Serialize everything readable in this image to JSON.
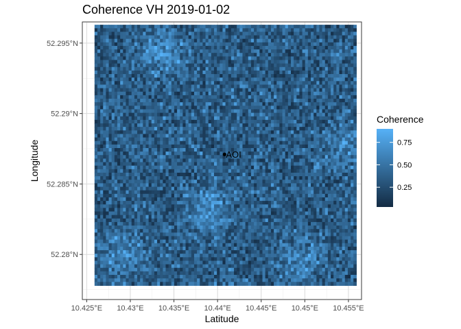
{
  "chart_data": {
    "type": "heatmap",
    "title": "Coherence VH 2019-01-02",
    "xlabel": "Latitude",
    "ylabel": "Longitude",
    "xlim": [
      10.4245,
      10.4565
    ],
    "ylim": [
      52.2768,
      52.2965
    ],
    "x_extent": [
      10.4259,
      10.4559
    ],
    "y_extent": [
      52.2778,
      52.2963
    ],
    "x_ticks": [
      10.425,
      10.43,
      10.435,
      10.44,
      10.445,
      10.45,
      10.455
    ],
    "x_tick_labels": [
      "10.425°E",
      "10.43°E",
      "10.435°E",
      "10.44°E",
      "10.445°E",
      "10.45°E",
      "10.455°E"
    ],
    "y_ticks": [
      52.28,
      52.285,
      52.29,
      52.295
    ],
    "y_tick_labels": [
      "52.28°N",
      "52.285°N",
      "52.29°N",
      "52.295°N"
    ],
    "grid": true,
    "raster": {
      "cols": 92,
      "rows": 74,
      "seed": 20190102,
      "value_range": [
        0.03,
        0.9
      ],
      "bright_patches": [
        {
          "x": 10.4389,
          "y": 52.2831,
          "strength": 0.35
        },
        {
          "x": 10.4292,
          "y": 52.28,
          "strength": 0.3
        },
        {
          "x": 10.4337,
          "y": 52.2943,
          "strength": 0.3
        },
        {
          "x": 10.4495,
          "y": 52.2796,
          "strength": 0.25
        },
        {
          "x": 10.4548,
          "y": 52.2877,
          "strength": 0.25
        }
      ]
    },
    "annotations": [
      {
        "label": "AOI",
        "x": 10.4408,
        "y": 52.2871
      }
    ],
    "legend": {
      "title": "Coherence",
      "placement": "right",
      "range": [
        0.03,
        0.9
      ],
      "ticks": [
        0.25,
        0.5,
        0.75
      ],
      "tick_labels": [
        "0.25",
        "0.50",
        "0.75"
      ],
      "color_low": "#132B43",
      "color_high": "#56B1F7"
    }
  }
}
